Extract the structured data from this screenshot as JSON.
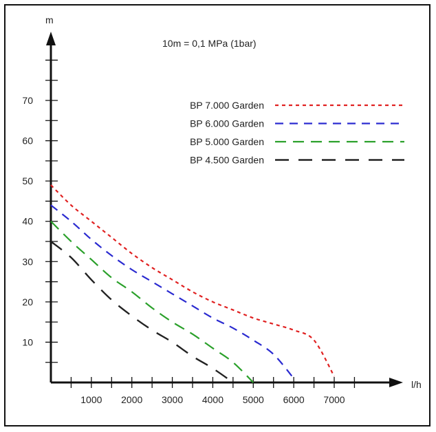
{
  "chart_data": {
    "type": "line",
    "note": "10m = 0,1 MPa (1bar)",
    "ylabel": "m",
    "xlabel": "l/h",
    "xlim": [
      0,
      7500
    ],
    "ylim": [
      0,
      80
    ],
    "x_ticks": [
      1000,
      2000,
      3000,
      4000,
      5000,
      6000,
      7000
    ],
    "x_tick_labels": [
      "1000",
      "2000",
      "3000",
      "4000",
      "5000",
      "6000",
      "7000"
    ],
    "y_ticks": [
      10,
      20,
      30,
      40,
      50,
      60,
      70
    ],
    "y_tick_labels": [
      "10",
      "20",
      "30",
      "40",
      "50",
      "60",
      "70"
    ],
    "x_minor_step": 500,
    "y_minor_step": 5,
    "legend_position": "top-right",
    "series": [
      {
        "name": "BP 7.000 Garden",
        "color": "#e02020",
        "dash": "dotted",
        "points": [
          [
            0,
            49
          ],
          [
            500,
            44
          ],
          [
            1000,
            40
          ],
          [
            1500,
            36
          ],
          [
            2000,
            32
          ],
          [
            2500,
            28.5
          ],
          [
            3000,
            25.5
          ],
          [
            3500,
            22.5
          ],
          [
            4000,
            20
          ],
          [
            4500,
            18
          ],
          [
            5000,
            16
          ],
          [
            5500,
            14.5
          ],
          [
            6000,
            13
          ],
          [
            6500,
            10.5
          ],
          [
            7000,
            1.5
          ]
        ]
      },
      {
        "name": "BP 6.000 Garden",
        "color": "#2a2ad0",
        "dash": "dashed",
        "points": [
          [
            0,
            44
          ],
          [
            500,
            40
          ],
          [
            1000,
            35.5
          ],
          [
            1500,
            31.5
          ],
          [
            2000,
            28
          ],
          [
            2500,
            25
          ],
          [
            3000,
            22
          ],
          [
            3500,
            19
          ],
          [
            4000,
            16
          ],
          [
            4500,
            13.5
          ],
          [
            5000,
            10.5
          ],
          [
            5500,
            7
          ],
          [
            6000,
            1
          ]
        ]
      },
      {
        "name": "BP 5.000 Garden",
        "color": "#2aa02a",
        "dash": "long-dashed",
        "points": [
          [
            0,
            40
          ],
          [
            500,
            35
          ],
          [
            1000,
            30.5
          ],
          [
            1500,
            26
          ],
          [
            2000,
            22.5
          ],
          [
            2500,
            18.5
          ],
          [
            3000,
            15
          ],
          [
            3500,
            12
          ],
          [
            4000,
            8.5
          ],
          [
            4500,
            5
          ],
          [
            5000,
            0
          ]
        ]
      },
      {
        "name": "BP 4.500 Garden",
        "color": "#222222",
        "dash": "longer-dashed",
        "points": [
          [
            0,
            35
          ],
          [
            500,
            31
          ],
          [
            1000,
            25.5
          ],
          [
            1500,
            20.5
          ],
          [
            2000,
            16.5
          ],
          [
            2500,
            13
          ],
          [
            3000,
            10
          ],
          [
            3500,
            6.5
          ],
          [
            4000,
            3.5
          ],
          [
            4500,
            0
          ]
        ]
      }
    ]
  }
}
